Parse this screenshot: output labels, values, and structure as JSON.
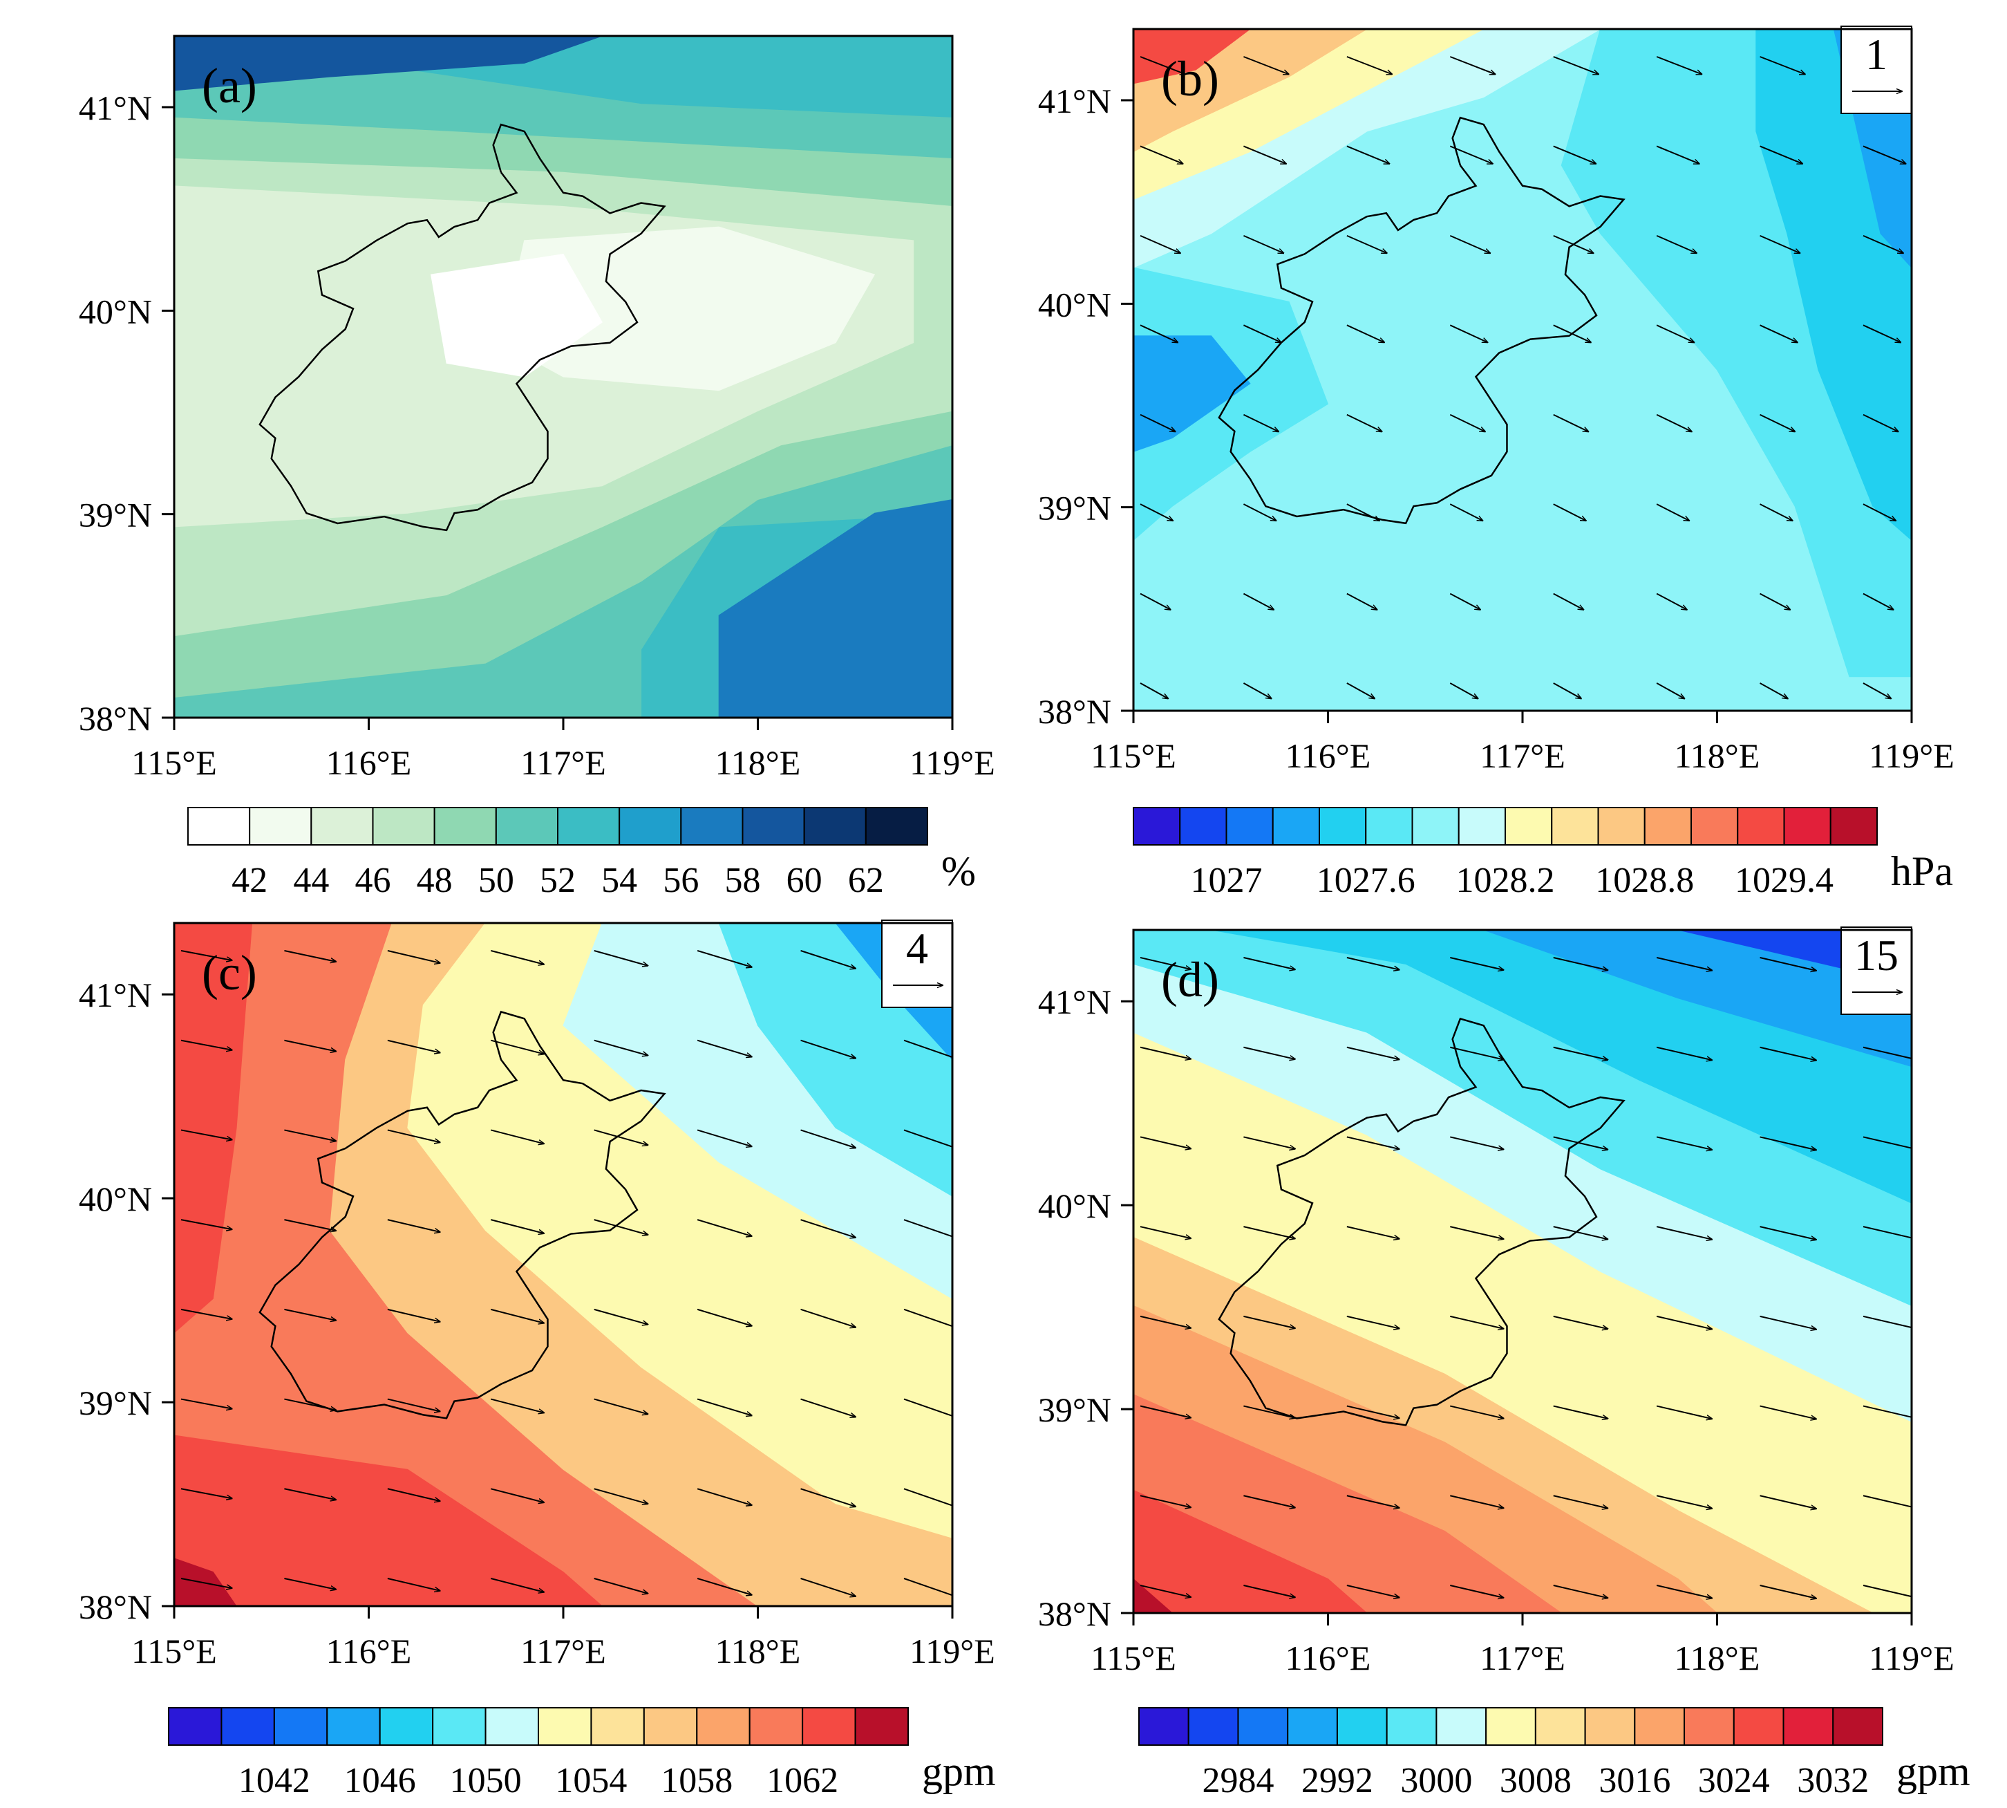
{
  "panels": [
    {
      "id": "a",
      "label": "(a)",
      "field": "relative-humidity",
      "unit": "%",
      "colorbar_ticks": [
        "42",
        "44",
        "46",
        "48",
        "50",
        "52",
        "54",
        "56",
        "58",
        "60",
        "62"
      ],
      "colorbar_colors": [
        "#ffffff",
        "#f2fbef",
        "#dcf1d8",
        "#bde7c4",
        "#8fd8b2",
        "#5cc8b8",
        "#3bbdc4",
        "#1f9fcc",
        "#1a7bbf",
        "#14569e",
        "#0c3873",
        "#061d44"
      ],
      "has_wind": false
    },
    {
      "id": "b",
      "label": "(b)",
      "field": "sea-level-pressure",
      "unit": "hPa",
      "wind_ref": "1",
      "colorbar_ticks": [
        "1027",
        "1027.6",
        "1028.2",
        "1028.8",
        "1029.4"
      ],
      "colorbar_colors": [
        "#2a18d8",
        "#1446f0",
        "#1478f5",
        "#1aa6f5",
        "#22d0f0",
        "#5ae8f5",
        "#8ef4f8",
        "#c8fbfb",
        "#fdfab0",
        "#fde39a",
        "#fcc883",
        "#fba46a",
        "#f97a5a",
        "#f44a43",
        "#e2203a",
        "#b8102a"
      ],
      "has_wind": true
    },
    {
      "id": "c",
      "label": "(c)",
      "field": "geopotential-height-lower",
      "unit": "gpm",
      "wind_ref": "4",
      "colorbar_ticks": [
        "1042",
        "1046",
        "1050",
        "1054",
        "1058",
        "1062"
      ],
      "colorbar_colors": [
        "#2a18d8",
        "#1446f0",
        "#1478f5",
        "#1aa6f5",
        "#22d0f0",
        "#5ae8f5",
        "#c8fbfb",
        "#fdfab0",
        "#fde39a",
        "#fcc883",
        "#fba46a",
        "#f97a5a",
        "#f44a43",
        "#b8102a"
      ],
      "has_wind": true
    },
    {
      "id": "d",
      "label": "(d)",
      "field": "geopotential-height-upper",
      "unit": "gpm",
      "wind_ref": "15",
      "colorbar_ticks": [
        "2984",
        "2992",
        "3000",
        "3008",
        "3016",
        "3024",
        "3032"
      ],
      "colorbar_colors": [
        "#2a18d8",
        "#1446f0",
        "#1478f5",
        "#1aa6f5",
        "#22d0f0",
        "#5ae8f5",
        "#c8fbfb",
        "#fdfab0",
        "#fde39a",
        "#fcc883",
        "#fba46a",
        "#f97a5a",
        "#f44a43",
        "#e2203a",
        "#b8102a"
      ],
      "has_wind": true
    }
  ],
  "axes": {
    "lon_labels": [
      "115°E",
      "116°E",
      "117°E",
      "118°E",
      "119°E"
    ],
    "lat_labels": [
      "41°N",
      "40°N",
      "39°N",
      "38°N"
    ],
    "lon_range": [
      115,
      119
    ],
    "lat_range": [
      38,
      41.35
    ]
  }
}
